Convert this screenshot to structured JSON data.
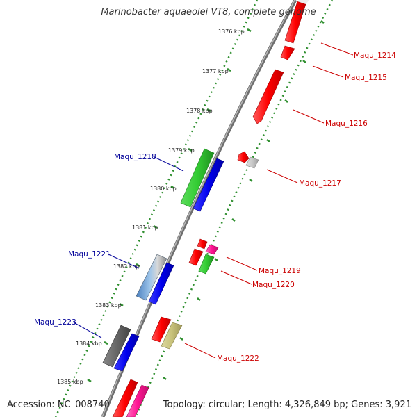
{
  "title": "Marinobacter aquaeolei VT8, complete genome",
  "footer": {
    "accession": "Accession: NC_008740",
    "topology": "Topology: circular; Length: 4,326,849 bp; Genes: 3,921"
  },
  "colors": {
    "backbone": "#8a8a8a",
    "tick_dots": "#2f8f2f",
    "forward_label": "#cc0000",
    "reverse_label": "#000099"
  },
  "ticks": [
    "1376 kbp",
    "1377 kbp",
    "1378 kbp",
    "1379 kbp",
    "1380 kbp",
    "1381 kbp",
    "1382 kbp",
    "1383 kbp",
    "1384 kbp",
    "1385 kbp"
  ],
  "gene_labels": {
    "maqu_1214": "Maqu_1214",
    "maqu_1215": "Maqu_1215",
    "maqu_1216": "Maqu_1216",
    "maqu_1217": "Maqu_1217",
    "maqu_1218": "Maqu_1218",
    "maqu_1219": "Maqu_1219",
    "maqu_1220": "Maqu_1220",
    "maqu_1221": "Maqu_1221",
    "maqu_1222": "Maqu_1222",
    "maqu_1223": "Maqu_1223"
  }
}
